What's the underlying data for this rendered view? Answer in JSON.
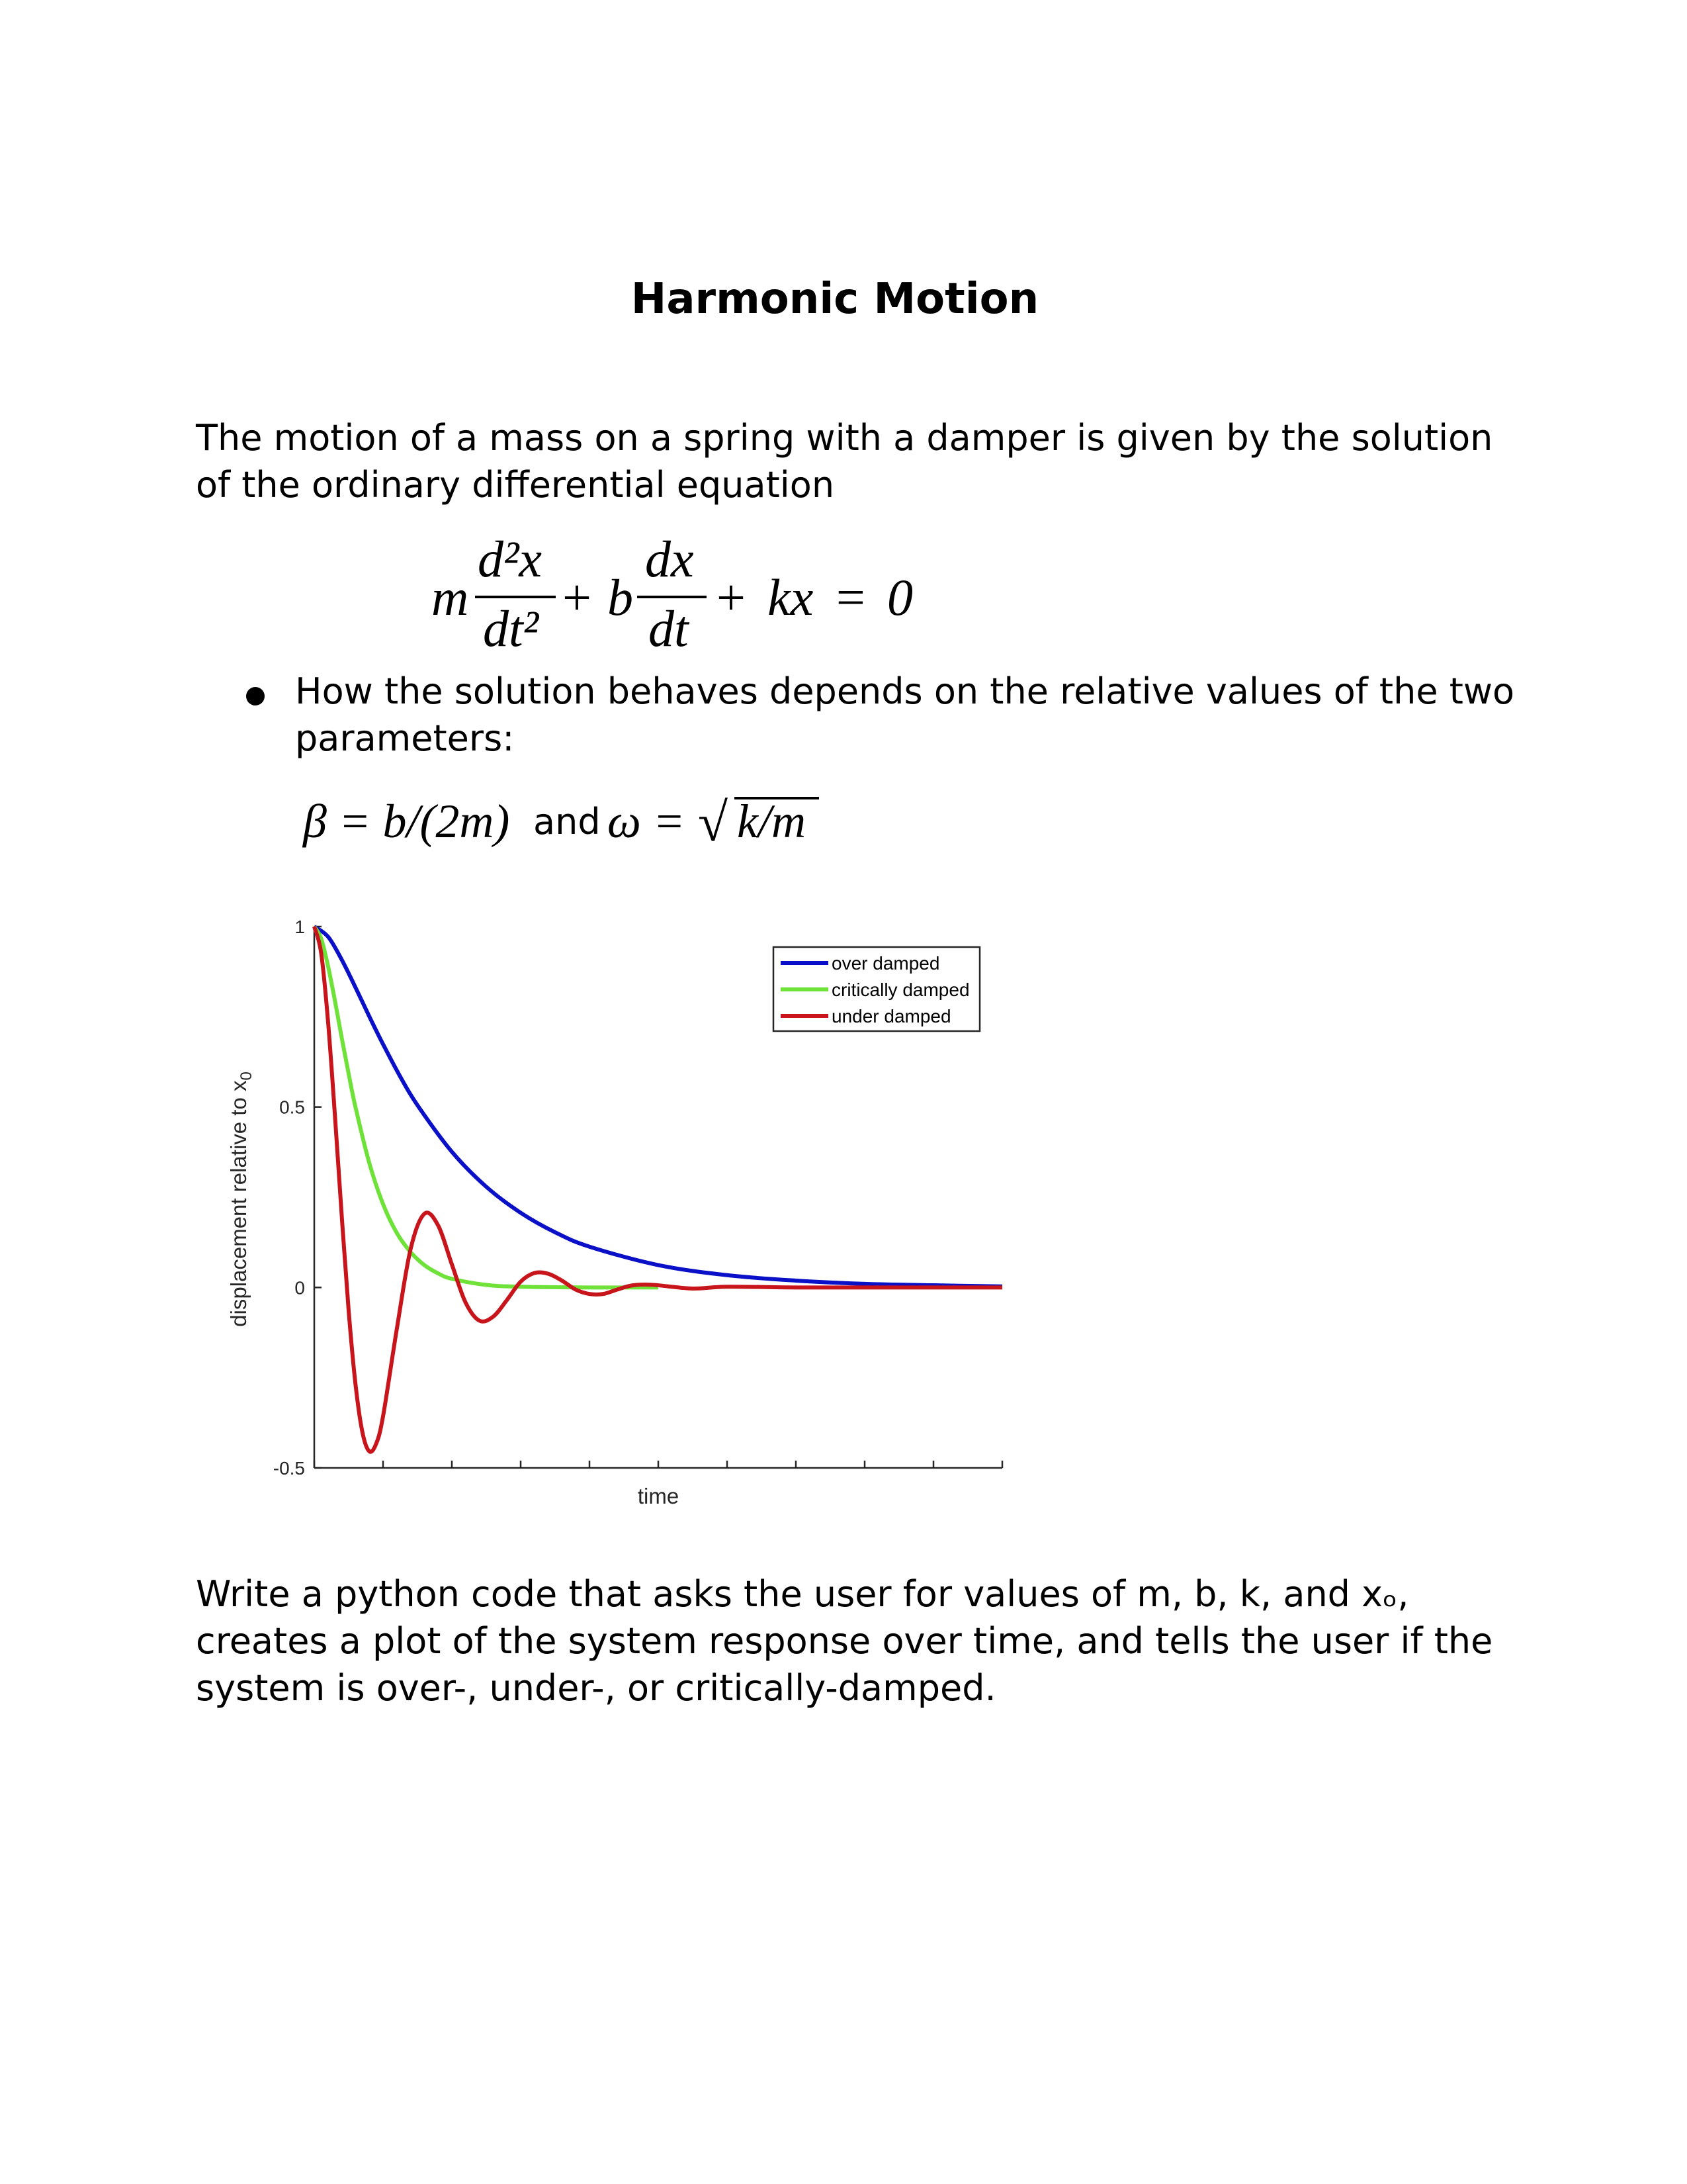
{
  "title": "Harmonic Motion",
  "intro": {
    "lines": [
      "The motion of a mass on a spring with a damper is given by the solution",
      "of the ordinary differential equation"
    ]
  },
  "equation": {
    "m": "m",
    "frac1_num": "d²x",
    "frac1_den": "dt²",
    "plus1": "+",
    "b": "b",
    "frac2_num": "dx",
    "frac2_den": "dt",
    "rest": "+ kx = 0"
  },
  "bullet": {
    "lines": [
      "How the solution behaves depends on the relative values of the two",
      "parameters:"
    ]
  },
  "parameters": {
    "beta": "β = b/(2m)",
    "and": "and",
    "omega": "ω = ",
    "radical": "√",
    "radicand": "k/m"
  },
  "chart_data": {
    "type": "line",
    "title": "",
    "xlabel": "time",
    "ylabel": "displacement relative to x",
    "ylabel_sub": "0",
    "xlim": [
      0,
      10
    ],
    "ylim": [
      -0.5,
      1
    ],
    "yticks": [
      -0.5,
      0,
      0.5,
      1
    ],
    "ytick_labels": [
      "-0.5",
      "0",
      "0.5",
      "1"
    ],
    "xticks": [
      0,
      1,
      2,
      3,
      4,
      5,
      6,
      7,
      8,
      9,
      10
    ],
    "xtick_labels_shown": false,
    "grid": false,
    "legend": "top-right",
    "series": [
      {
        "name": "over damped",
        "color": "#0a10c8",
        "x": [
          0,
          0.2,
          0.4,
          0.6,
          0.8,
          1.0,
          1.25,
          1.5,
          2,
          2.5,
          3,
          3.5,
          4,
          5,
          6,
          7,
          8,
          9,
          10
        ],
        "y": [
          1,
          0.972,
          0.908,
          0.831,
          0.751,
          0.674,
          0.584,
          0.505,
          0.376,
          0.279,
          0.207,
          0.153,
          0.113,
          0.062,
          0.034,
          0.019,
          0.01,
          0.006,
          0.003
        ]
      },
      {
        "name": "critically damped",
        "color": "#6fe23a",
        "x": [
          0,
          0.1,
          0.2,
          0.3,
          0.4,
          0.5,
          0.6,
          0.8,
          1.0,
          1.2,
          1.4,
          1.6,
          1.8,
          2.0,
          2.5,
          3,
          4,
          5
        ],
        "y": [
          1,
          0.967,
          0.891,
          0.795,
          0.691,
          0.592,
          0.499,
          0.345,
          0.231,
          0.151,
          0.098,
          0.062,
          0.039,
          0.024,
          0.007,
          0.002,
          0,
          0
        ]
      },
      {
        "name": "under damped",
        "color": "#c8151b",
        "x": [
          0,
          0.1,
          0.2,
          0.3,
          0.4,
          0.5,
          0.6,
          0.7,
          0.8,
          0.9,
          1.0,
          1.2,
          1.4,
          1.6,
          1.8,
          2.0,
          2.2,
          2.4,
          2.6,
          2.8,
          3.0,
          3.2,
          3.4,
          3.6,
          3.8,
          4.0,
          4.2,
          4.4,
          4.6,
          4.8,
          5.0,
          5.5,
          6,
          7,
          8,
          9,
          10
        ],
        "y": [
          1,
          0.927,
          0.738,
          0.478,
          0.197,
          -0.064,
          -0.269,
          -0.401,
          -0.454,
          -0.433,
          -0.357,
          -0.115,
          0.106,
          0.204,
          0.172,
          0.064,
          -0.042,
          -0.092,
          -0.081,
          -0.035,
          0.016,
          0.04,
          0.038,
          0.019,
          -0.006,
          -0.018,
          -0.018,
          -0.006,
          0.005,
          0.008,
          0.006,
          -0.003,
          0.002,
          0,
          0,
          0,
          0
        ]
      }
    ]
  },
  "task": {
    "lines": [
      "Write a python code that asks the user for values of m, b, k, and xₒ,",
      "creates a plot of the system response over time, and tells the user if the",
      "system is over-, under-, or critically-damped."
    ]
  }
}
